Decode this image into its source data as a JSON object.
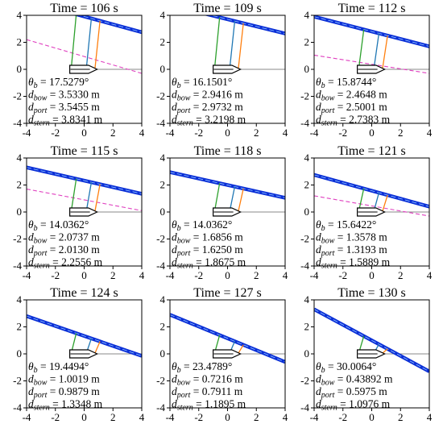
{
  "colors": {
    "waterline": "#0b2fd6",
    "waterline_core": "#7fb0ff",
    "forecast": "#e040c0",
    "bow": "#ff7f0e",
    "port": "#1f77b4",
    "stern": "#2ca02c",
    "boat": "#000000",
    "axis": "#000000"
  },
  "labels": {
    "time_unit": "s",
    "length_unit": "m",
    "degree": "°",
    "bow": "bow",
    "port": "port",
    "stern": "stern"
  },
  "chart_data": [
    {
      "type": "line",
      "title": "Time = 106 s",
      "time": 106,
      "xlim": [
        -4,
        4
      ],
      "ylim": [
        -4,
        4
      ],
      "x_ticks": [
        -4,
        -2,
        0,
        2,
        4
      ],
      "y_ticks": [
        -4,
        -2,
        0,
        2,
        4
      ],
      "waterline": {
        "x": [
          -1.5,
          4
        ],
        "y": [
          4.35,
          2.75
        ]
      },
      "forecast_line": {
        "x": [
          -4,
          4
        ],
        "y": [
          2.2,
          -0.3
        ]
      },
      "theta_b": "17.5279°",
      "d_bow": "3.5330 m",
      "d_port": "3.5455 m",
      "d_stern": "3.8341 m"
    },
    {
      "type": "line",
      "title": "Time = 109 s",
      "time": 109,
      "xlim": [
        -4,
        4
      ],
      "ylim": [
        -4,
        4
      ],
      "x_ticks": [
        -4,
        -2,
        0,
        2,
        4
      ],
      "y_ticks": [
        -4,
        -2,
        0,
        2,
        4
      ],
      "waterline": {
        "x": [
          -1.5,
          4
        ],
        "y": [
          4.1,
          2.65
        ]
      },
      "theta_b": "16.1501°",
      "d_bow": "2.9416 m",
      "d_port": "2.9732 m",
      "d_stern": "3.2198 m"
    },
    {
      "type": "line",
      "title": "Time = 112 s",
      "time": 112,
      "xlim": [
        -4,
        4
      ],
      "ylim": [
        -4,
        4
      ],
      "x_ticks": [
        -4,
        -2,
        0,
        2,
        4
      ],
      "y_ticks": [
        -4,
        -2,
        0,
        2,
        4
      ],
      "waterline": {
        "x": [
          -4,
          4
        ],
        "y": [
          3.9,
          1.7
        ]
      },
      "forecast_line": {
        "x": [
          -4,
          4
        ],
        "y": [
          1.05,
          -0.3
        ]
      },
      "theta_b": "15.8744°",
      "d_bow": "2.4648 m",
      "d_port": "2.5001 m",
      "d_stern": "2.7383 m"
    },
    {
      "type": "line",
      "title": "Time = 115 s",
      "time": 115,
      "xlim": [
        -4,
        4
      ],
      "ylim": [
        -4,
        4
      ],
      "x_ticks": [
        -4,
        -2,
        0,
        2,
        4
      ],
      "y_ticks": [
        -4,
        -2,
        0,
        2,
        4
      ],
      "waterline": {
        "x": [
          -4,
          4
        ],
        "y": [
          3.3,
          1.35
        ]
      },
      "forecast_line": {
        "x": [
          -4,
          4
        ],
        "y": [
          1.7,
          0.1
        ]
      },
      "theta_b": "14.0362°",
      "d_bow": "2.0737 m",
      "d_port": "2.0130 m",
      "d_stern": "2.2556 m"
    },
    {
      "type": "line",
      "title": "Time = 118 s",
      "time": 118,
      "xlim": [
        -4,
        4
      ],
      "ylim": [
        -4,
        4
      ],
      "x_ticks": [
        -4,
        -2,
        0,
        2,
        4
      ],
      "y_ticks": [
        -4,
        -2,
        0,
        2,
        4
      ],
      "waterline": {
        "x": [
          -4,
          4
        ],
        "y": [
          2.95,
          1.05
        ]
      },
      "theta_b": "14.0362°",
      "d_bow": "1.6856 m",
      "d_port": "1.6250 m",
      "d_stern": "1.8675 m"
    },
    {
      "type": "line",
      "title": "Time = 121 s",
      "time": 121,
      "xlim": [
        -4,
        4
      ],
      "ylim": [
        -4,
        4
      ],
      "x_ticks": [
        -4,
        -2,
        0,
        2,
        4
      ],
      "y_ticks": [
        -4,
        -2,
        0,
        2,
        4
      ],
      "waterline": {
        "x": [
          -4,
          4
        ],
        "y": [
          2.75,
          0.4
        ]
      },
      "forecast_line": {
        "x": [
          -4,
          4
        ],
        "y": [
          1.2,
          -0.3
        ]
      },
      "theta_b": "15.6422°",
      "d_bow": "1.3578 m",
      "d_port": "1.3193 m",
      "d_stern": "1.5889 m"
    },
    {
      "type": "line",
      "title": "Time = 124 s",
      "time": 124,
      "xlim": [
        -4,
        4
      ],
      "ylim": [
        -4,
        4
      ],
      "x_ticks": [
        -4,
        -2,
        0,
        2,
        4
      ],
      "y_ticks": [
        -4,
        -2,
        0,
        2,
        4
      ],
      "waterline": {
        "x": [
          -4,
          4
        ],
        "y": [
          2.8,
          -0.15
        ]
      },
      "theta_b": "19.4494°",
      "d_bow": "1.0019 m",
      "d_port": "0.9879 m",
      "d_stern": "1.3348 m"
    },
    {
      "type": "line",
      "title": "Time = 127 s",
      "time": 127,
      "xlim": [
        -4,
        4
      ],
      "ylim": [
        -4,
        4
      ],
      "x_ticks": [
        -4,
        -2,
        0,
        2,
        4
      ],
      "y_ticks": [
        -4,
        -2,
        0,
        2,
        4
      ],
      "waterline": {
        "x": [
          -4,
          4
        ],
        "y": [
          2.9,
          -0.6
        ]
      },
      "theta_b": "23.4789°",
      "d_bow": "0.7216 m",
      "d_port": "0.7911 m",
      "d_stern": "1.1895 m"
    },
    {
      "type": "line",
      "title": "Time = 130 s",
      "time": 130,
      "xlim": [
        -4,
        4
      ],
      "ylim": [
        -4,
        4
      ],
      "x_ticks": [
        -4,
        -2,
        0,
        2,
        4
      ],
      "y_ticks": [
        -4,
        -2,
        0,
        2,
        4
      ],
      "waterline": {
        "x": [
          -4,
          4
        ],
        "y": [
          3.3,
          -1.3
        ]
      },
      "theta_b": "30.0064°",
      "d_bow": "0.43892 m",
      "d_port": "0.5975 m",
      "d_stern": "1.0976 m"
    }
  ]
}
